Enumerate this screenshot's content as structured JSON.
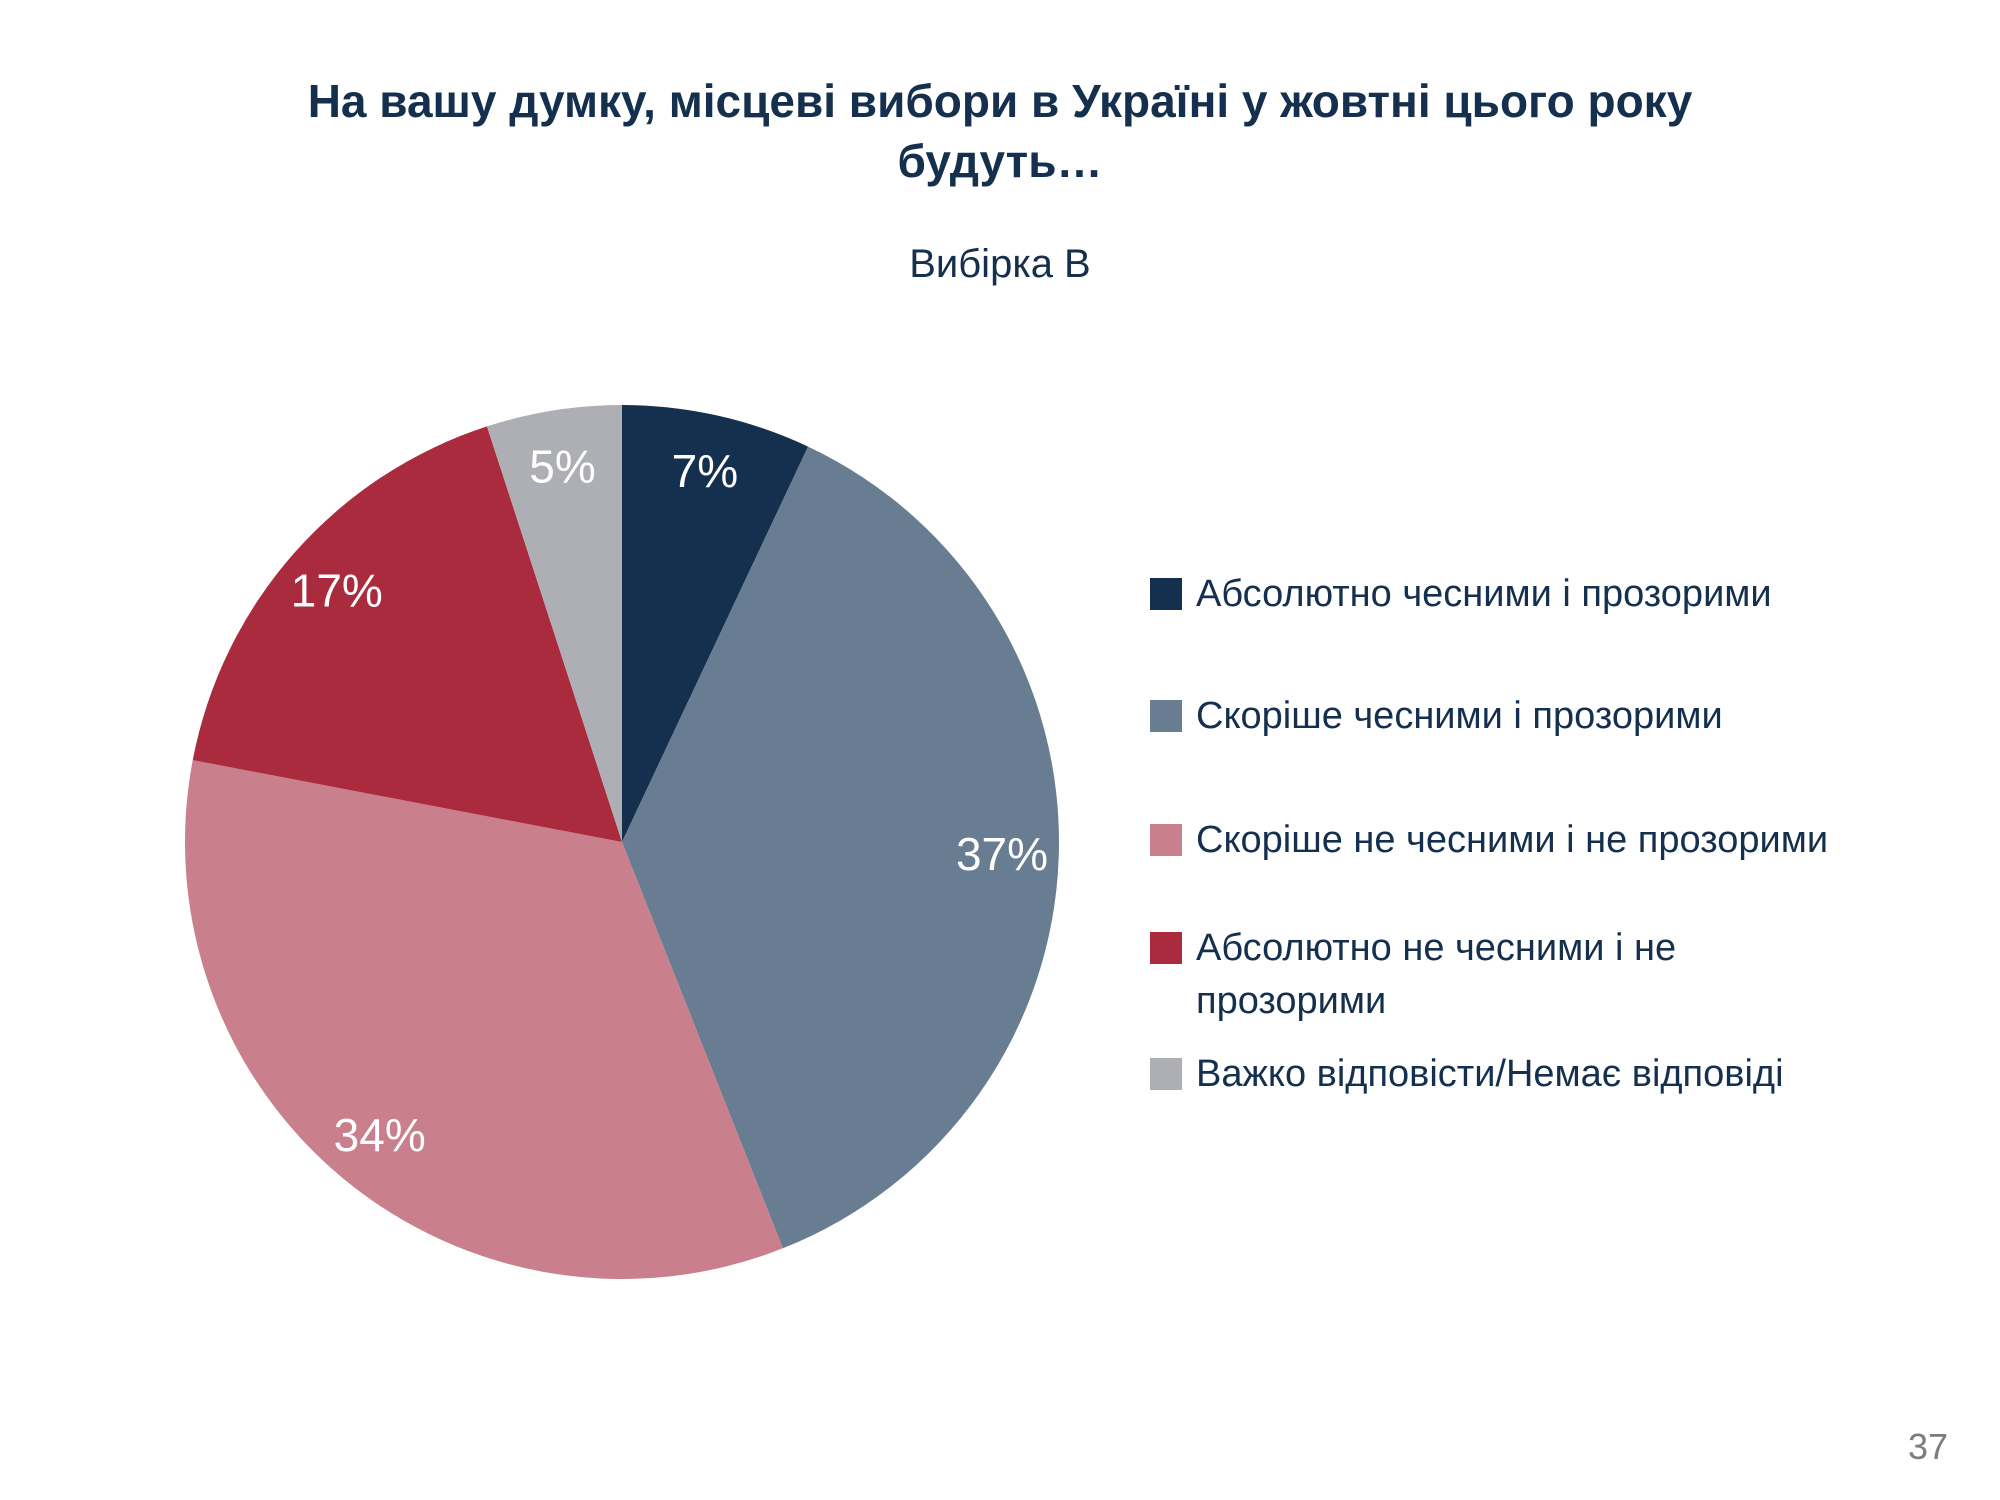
{
  "slide": {
    "title_line1": "На вашу думку, місцеві вибори в Україні у жовтні цього року",
    "title_line2": "будуть…",
    "subtitle": "Вибірка В",
    "page_number": "37"
  },
  "chart_data": {
    "type": "pie",
    "title": "Вибірка В",
    "start_angle_deg": 0,
    "direction": "clockwise",
    "legend_position": "right",
    "percent_label_color": "#ffffff",
    "slices": [
      {
        "label": "Абсолютно чесними і прозорими",
        "value": 7,
        "percent_label": "7%",
        "color": "#14304e"
      },
      {
        "label": "Скоріше чесними і прозорими",
        "value": 37,
        "percent_label": "37%",
        "color": "#687d92"
      },
      {
        "label": "Скоріше не чесними і не прозорими",
        "value": 34,
        "percent_label": "34%",
        "color": "#c97f8c"
      },
      {
        "label": "Абсолютно не чесними і не прозорими",
        "value": 17,
        "percent_label": "17%",
        "color": "#a92b3d"
      },
      {
        "label": "Важко відповісти/Немає відповіді",
        "value": 5,
        "percent_label": "5%",
        "color": "#aeafb4"
      }
    ]
  }
}
